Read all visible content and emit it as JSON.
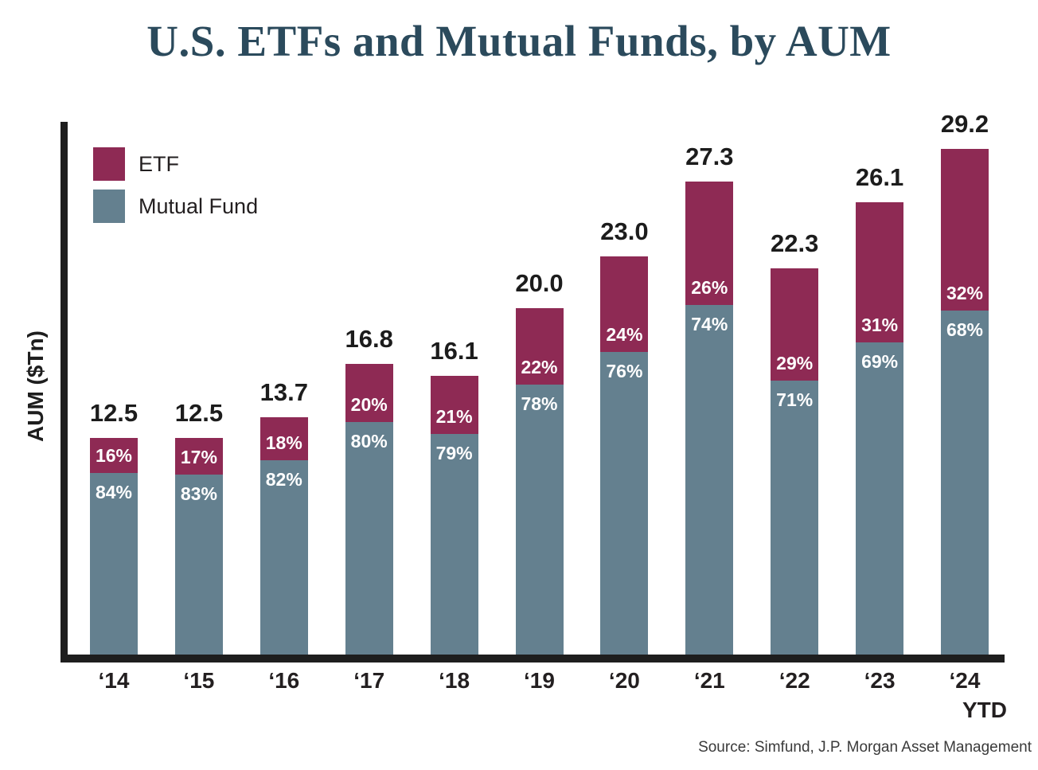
{
  "title": "U.S. ETFs and Mutual Funds, by AUM",
  "axes": {
    "y_label": "AUM ($Tn)"
  },
  "legend": {
    "items": [
      {
        "label": "ETF",
        "color": "#8E2A54"
      },
      {
        "label": "Mutual Fund",
        "color": "#64808F"
      }
    ]
  },
  "source_note": "Source: Simfund, J.P. Morgan Asset Management",
  "colors": {
    "etf": "#8E2A54",
    "mutual_fund": "#64808F",
    "title": "#2B4A5C",
    "axis": "#1E1E1E",
    "label_text": "#231F20",
    "segment_label_text": "#FFFFFF"
  },
  "chart_data": {
    "type": "bar",
    "stacked": true,
    "title": "U.S. ETFs and Mutual Funds, by AUM",
    "xlabel": "",
    "ylabel": "AUM ($Tn)",
    "ylim": [
      0,
      29.2
    ],
    "grid": false,
    "legend_position": "top-left",
    "categories": [
      "‘14",
      "‘15",
      "‘16",
      "‘17",
      "‘18",
      "‘19",
      "‘20",
      "‘21",
      "‘22",
      "‘23",
      "‘24"
    ],
    "last_category_sublabel": "YTD",
    "totals_trillions": [
      12.5,
      12.5,
      13.7,
      16.8,
      16.1,
      20.0,
      23.0,
      27.3,
      22.3,
      26.1,
      29.2
    ],
    "series": [
      {
        "name": "ETF",
        "color": "#8E2A54",
        "pct_of_total": [
          16,
          17,
          18,
          20,
          21,
          22,
          24,
          26,
          29,
          31,
          32
        ]
      },
      {
        "name": "Mutual Fund",
        "color": "#64808F",
        "pct_of_total": [
          84,
          83,
          82,
          80,
          79,
          78,
          76,
          74,
          71,
          69,
          68
        ]
      }
    ],
    "value_label_format": "one_decimal_total_above_bar",
    "segment_label_format": "percent_inside_segment"
  }
}
